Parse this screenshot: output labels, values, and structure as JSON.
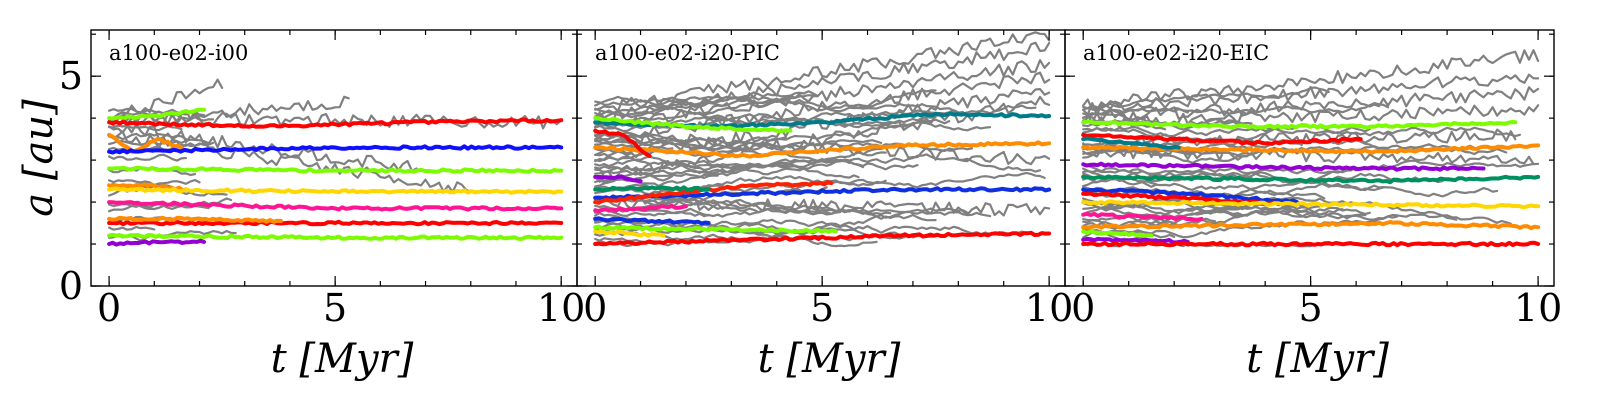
{
  "chart_data": [
    {
      "type": "line",
      "title": "a100-e02-i00",
      "xlabel": "t [Myr]",
      "ylabel": "a  [au]",
      "xlim": [
        -0.4,
        10.35
      ],
      "ylim": [
        0,
        6.1
      ],
      "xticks": [
        0,
        5,
        10
      ],
      "yticks": [
        0,
        5
      ],
      "seed": 7,
      "grey": {
        "count": 16,
        "a_min": 1.1,
        "a_max": 4.3,
        "drift_tracks": [
          {
            "start": 4.0,
            "end_t": 2.5,
            "end_a": 4.8
          },
          {
            "start": 3.9,
            "end_t": 5.3,
            "end_a": 4.4
          },
          {
            "start": 3.6,
            "end_t": 8.0,
            "end_a": 2.3
          },
          {
            "start": 4.0,
            "end_t": 10.0,
            "end_a": 3.9
          },
          {
            "start": 3.8,
            "end_t": 6.8,
            "end_a": 2.8
          }
        ]
      },
      "series": [
        {
          "name": "green-top",
          "color": "#7cfc00",
          "a": [
            4.0,
            4.05,
            4.2
          ],
          "t_end": 2.1
        },
        {
          "name": "red-1",
          "color": "#ff0000",
          "a": [
            3.9,
            3.8,
            3.9,
            3.95
          ],
          "t_end": 10.0
        },
        {
          "name": "orange-1",
          "color": "#ff8c00",
          "a": [
            3.6,
            3.2,
            3.5,
            3.3
          ],
          "t_end": 1.6
        },
        {
          "name": "blue-1",
          "color": "#1010ff",
          "a": [
            3.2,
            3.3,
            3.3
          ],
          "t_end": 10.0
        },
        {
          "name": "green-2",
          "color": "#7cfc00",
          "a": [
            2.8,
            2.75,
            2.75
          ],
          "t_end": 10.0
        },
        {
          "name": "orange-2",
          "color": "#ff8c00",
          "a": [
            2.4,
            2.4,
            2.3
          ],
          "t_end": 1.7
        },
        {
          "name": "yellow-1",
          "color": "#ffd700",
          "a": [
            2.3,
            2.25,
            2.25
          ],
          "t_end": 10.0
        },
        {
          "name": "magenta-1",
          "color": "#ff1493",
          "a": [
            2.0,
            1.85,
            1.85
          ],
          "t_end": 10.0
        },
        {
          "name": "red-2",
          "color": "#ff0000",
          "a": [
            1.5,
            1.5,
            1.5
          ],
          "t_end": 10.0
        },
        {
          "name": "orange-3",
          "color": "#ff8c00",
          "a": [
            1.6,
            1.6,
            1.55
          ],
          "t_end": 3.8
        },
        {
          "name": "green-3",
          "color": "#7cfc00",
          "a": [
            1.2,
            1.15,
            1.15
          ],
          "t_end": 10.0
        },
        {
          "name": "purple-1",
          "color": "#9400d3",
          "a": [
            1.0,
            1.05,
            1.05
          ],
          "t_end": 2.1
        }
      ]
    },
    {
      "type": "line",
      "title": "a100-e02-i20-PIC",
      "xlabel": "t [Myr]",
      "ylabel": "",
      "xlim": [
        -0.4,
        10.35
      ],
      "ylim": [
        0,
        6.1
      ],
      "xticks": [
        0,
        5,
        10
      ],
      "yticks": [
        0,
        5
      ],
      "seed": 19,
      "grey": {
        "count": 40,
        "a_min": 1.0,
        "a_max": 4.4,
        "drift_tracks": [
          {
            "start": 4.2,
            "end_t": 10.0,
            "end_a": 6.0
          },
          {
            "start": 4.0,
            "end_t": 10.0,
            "end_a": 5.7
          },
          {
            "start": 3.8,
            "end_t": 10.0,
            "end_a": 5.3
          },
          {
            "start": 3.5,
            "end_t": 10.0,
            "end_a": 5.0
          },
          {
            "start": 3.0,
            "end_t": 10.0,
            "end_a": 4.7
          },
          {
            "start": 2.6,
            "end_t": 10.0,
            "end_a": 4.4
          },
          {
            "start": 2.0,
            "end_t": 10.0,
            "end_a": 1.8
          },
          {
            "start": 3.6,
            "end_t": 10.0,
            "end_a": 3.0
          }
        ]
      },
      "series": [
        {
          "name": "teal-1",
          "color": "#007b8a",
          "a": [
            3.9,
            3.8,
            3.9,
            4.1,
            4.05
          ],
          "t_end": 10.0
        },
        {
          "name": "green-1",
          "color": "#7cfc00",
          "a": [
            4.0,
            3.85,
            3.75,
            3.7
          ],
          "t_end": 4.3
        },
        {
          "name": "orange-1",
          "color": "#ff8c00",
          "a": [
            3.3,
            3.1,
            3.35,
            3.4
          ],
          "t_end": 10.0
        },
        {
          "name": "red-1",
          "color": "#ff0000",
          "a": [
            3.7,
            3.6,
            3.1
          ],
          "t_end": 1.2
        },
        {
          "name": "purple-1",
          "color": "#9400d3",
          "a": [
            2.6,
            2.6,
            2.5
          ],
          "t_end": 1.0
        },
        {
          "name": "blue-1",
          "color": "#1030e0",
          "a": [
            2.1,
            2.2,
            2.3,
            2.3
          ],
          "t_end": 10.0
        },
        {
          "name": "red-2",
          "color": "#ff2000",
          "a": [
            2.0,
            2.2,
            2.4,
            2.45
          ],
          "t_end": 5.2
        },
        {
          "name": "green-2",
          "color": "#009060",
          "a": [
            2.3,
            2.35,
            2.3
          ],
          "t_end": 2.5
        },
        {
          "name": "magenta-1",
          "color": "#ff1493",
          "a": [
            1.8,
            1.85,
            1.9
          ],
          "t_end": 2.0
        },
        {
          "name": "blue-2",
          "color": "#1030e0",
          "a": [
            1.6,
            1.55,
            1.5
          ],
          "t_end": 2.5
        },
        {
          "name": "green-3",
          "color": "#7cfc00",
          "a": [
            1.4,
            1.35,
            1.3
          ],
          "t_end": 5.3
        },
        {
          "name": "yellow-1",
          "color": "#ffd700",
          "a": [
            1.3,
            1.25,
            1.2
          ],
          "t_end": 1.5
        },
        {
          "name": "red-3",
          "color": "#ff0000",
          "a": [
            1.0,
            1.1,
            1.2,
            1.25
          ],
          "t_end": 10.0
        }
      ]
    },
    {
      "type": "line",
      "title": "a100-e02-i20-EIC",
      "xlabel": "t [Myr]",
      "ylabel": "",
      "xlim": [
        -0.4,
        10.35
      ],
      "ylim": [
        0,
        6.1
      ],
      "xticks": [
        0,
        5,
        10
      ],
      "yticks": [
        0,
        5
      ],
      "seed": 31,
      "grey": {
        "count": 34,
        "a_min": 1.0,
        "a_max": 4.35,
        "drift_tracks": [
          {
            "start": 4.3,
            "end_t": 10.0,
            "end_a": 5.5
          },
          {
            "start": 4.2,
            "end_t": 10.0,
            "end_a": 5.0
          },
          {
            "start": 4.0,
            "end_t": 10.0,
            "end_a": 4.6
          },
          {
            "start": 3.9,
            "end_t": 10.0,
            "end_a": 4.2
          },
          {
            "start": 3.2,
            "end_t": 10.0,
            "end_a": 3.0
          },
          {
            "start": 3.4,
            "end_t": 9.5,
            "end_a": 3.6
          }
        ]
      },
      "series": [
        {
          "name": "green-1",
          "color": "#7cfc00",
          "a": [
            3.9,
            3.8,
            3.8,
            3.9
          ],
          "t_end": 9.5
        },
        {
          "name": "red-1",
          "color": "#ff0000",
          "a": [
            3.6,
            3.5,
            3.4,
            3.5
          ],
          "t_end": 6.1
        },
        {
          "name": "orange-1",
          "color": "#ff8c00",
          "a": [
            3.3,
            3.25,
            3.2,
            3.35
          ],
          "t_end": 10.0
        },
        {
          "name": "teal-1",
          "color": "#007b8a",
          "a": [
            3.5,
            3.4,
            3.3
          ],
          "t_end": 2.1
        },
        {
          "name": "purple-1",
          "color": "#9400d3",
          "a": [
            2.9,
            2.85,
            2.8,
            2.8
          ],
          "t_end": 8.8
        },
        {
          "name": "green-2",
          "color": "#009060",
          "a": [
            2.6,
            2.55,
            2.5,
            2.6
          ],
          "t_end": 10.0
        },
        {
          "name": "blue-1",
          "color": "#1030e0",
          "a": [
            2.3,
            2.2,
            2.0
          ],
          "t_end": 4.7
        },
        {
          "name": "red-2",
          "color": "#ff0000",
          "a": [
            2.2,
            2.1,
            1.95
          ],
          "t_end": 4.3
        },
        {
          "name": "yellow-1",
          "color": "#ffd700",
          "a": [
            2.0,
            1.95,
            1.9
          ],
          "t_end": 10.0
        },
        {
          "name": "magenta-1",
          "color": "#ff1493",
          "a": [
            1.7,
            1.65,
            1.6
          ],
          "t_end": 2.6
        },
        {
          "name": "orange-2",
          "color": "#ff8c00",
          "a": [
            1.4,
            1.45,
            1.5,
            1.4
          ],
          "t_end": 10.0
        },
        {
          "name": "green-3",
          "color": "#7cfc00",
          "a": [
            1.3,
            1.25,
            1.2
          ],
          "t_end": 1.5
        },
        {
          "name": "purple-2",
          "color": "#9400d3",
          "a": [
            1.1,
            1.1,
            1.05
          ],
          "t_end": 2.3
        },
        {
          "name": "red-3",
          "color": "#ff0000",
          "a": [
            1.0,
            1.0,
            1.0
          ],
          "t_end": 10.0
        }
      ]
    }
  ]
}
